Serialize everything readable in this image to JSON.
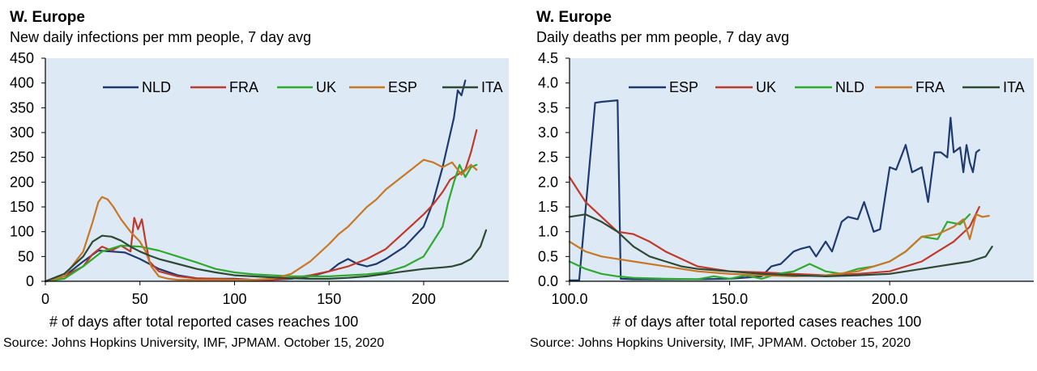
{
  "chart_data": [
    {
      "type": "line",
      "title": "W. Europe",
      "subtitle": "New daily infections per mm people, 7 day avg",
      "xlabel": "# of days after total reported cases reaches 100",
      "ylabel": "",
      "source": "Source: Johns Hopkins University, IMF, JPMAM. October 15, 2020",
      "xlim": [
        0,
        245
      ],
      "ylim": [
        0,
        450
      ],
      "xticks": [
        0,
        50,
        100,
        150,
        200
      ],
      "yticks": [
        0,
        50,
        100,
        150,
        200,
        250,
        300,
        350,
        400,
        450
      ],
      "tick_format": "int",
      "grid": false,
      "background": "#dde9f5",
      "legend_position": "top",
      "series": [
        {
          "name": "NLD",
          "color": "#1f3a6e",
          "x": [
            0,
            10,
            20,
            28,
            35,
            42,
            50,
            60,
            70,
            80,
            90,
            100,
            110,
            120,
            130,
            140,
            150,
            155,
            160,
            165,
            170,
            175,
            180,
            190,
            200,
            205,
            210,
            213,
            216,
            218,
            220,
            222
          ],
          "y": [
            0,
            10,
            40,
            62,
            60,
            58,
            45,
            25,
            12,
            6,
            5,
            5,
            3,
            3,
            5,
            10,
            20,
            35,
            45,
            35,
            30,
            35,
            45,
            70,
            110,
            160,
            230,
            280,
            330,
            385,
            375,
            405
          ]
        },
        {
          "name": "FRA",
          "color": "#c0392b",
          "x": [
            0,
            10,
            20,
            25,
            30,
            35,
            40,
            45,
            47,
            49,
            51,
            53,
            55,
            60,
            70,
            80,
            90,
            100,
            110,
            120,
            130,
            140,
            150,
            160,
            170,
            180,
            190,
            200,
            205,
            210,
            214,
            218,
            222,
            225,
            228
          ],
          "y": [
            0,
            10,
            30,
            55,
            70,
            62,
            72,
            60,
            128,
            105,
            125,
            80,
            40,
            20,
            10,
            6,
            5,
            4,
            3,
            3,
            6,
            12,
            20,
            30,
            45,
            65,
            100,
            135,
            155,
            180,
            205,
            215,
            225,
            260,
            305
          ]
        },
        {
          "name": "UK",
          "color": "#2eaa2e",
          "x": [
            0,
            10,
            20,
            30,
            40,
            50,
            60,
            70,
            80,
            90,
            100,
            110,
            120,
            130,
            140,
            150,
            160,
            170,
            180,
            190,
            200,
            205,
            210,
            213,
            216,
            219,
            222,
            225,
            228
          ],
          "y": [
            0,
            5,
            30,
            60,
            72,
            70,
            62,
            50,
            38,
            25,
            18,
            14,
            12,
            10,
            10,
            10,
            12,
            14,
            18,
            30,
            50,
            80,
            110,
            160,
            200,
            235,
            210,
            230,
            235
          ]
        },
        {
          "name": "ESP",
          "color": "#c87825",
          "x": [
            0,
            10,
            20,
            25,
            28,
            30,
            33,
            36,
            40,
            45,
            50,
            53,
            56,
            60,
            65,
            70,
            80,
            90,
            100,
            110,
            120,
            130,
            140,
            150,
            155,
            160,
            165,
            170,
            175,
            180,
            185,
            190,
            195,
            200,
            205,
            210,
            215,
            220,
            225,
            228
          ],
          "y": [
            0,
            10,
            60,
            120,
            160,
            170,
            165,
            150,
            125,
            100,
            80,
            60,
            30,
            10,
            5,
            3,
            3,
            3,
            3,
            3,
            5,
            15,
            40,
            75,
            95,
            110,
            130,
            150,
            165,
            185,
            200,
            215,
            230,
            245,
            240,
            230,
            240,
            215,
            235,
            225
          ]
        },
        {
          "name": "ITA",
          "color": "#2e4a34",
          "x": [
            0,
            10,
            20,
            25,
            30,
            35,
            40,
            45,
            50,
            55,
            60,
            70,
            80,
            90,
            100,
            110,
            120,
            130,
            140,
            150,
            160,
            170,
            180,
            190,
            200,
            210,
            215,
            220,
            225,
            230,
            233
          ],
          "y": [
            0,
            15,
            50,
            80,
            92,
            90,
            82,
            70,
            60,
            52,
            45,
            35,
            25,
            18,
            12,
            10,
            8,
            6,
            5,
            5,
            7,
            10,
            15,
            20,
            25,
            28,
            30,
            35,
            45,
            70,
            103
          ]
        }
      ]
    },
    {
      "type": "line",
      "title": "W. Europe",
      "subtitle": "Daily deaths per mm people, 7 day avg",
      "xlabel": "# of days after total reported cases reaches 100",
      "ylabel": "",
      "source": "Source: Johns Hopkins University, IMF, JPMAM. October 15, 2020",
      "xlim": [
        100,
        245
      ],
      "ylim": [
        0,
        4.5
      ],
      "xticks": [
        100,
        150,
        200
      ],
      "yticks": [
        0,
        0.5,
        1.0,
        1.5,
        2.0,
        2.5,
        3.0,
        3.5,
        4.0,
        4.5
      ],
      "tick_format": "1dp",
      "grid": false,
      "background": "#dde9f5",
      "legend_position": "top",
      "series": [
        {
          "name": "ESP",
          "color": "#1f3a6e",
          "x": [
            100,
            103,
            108,
            110,
            115,
            116,
            120,
            125,
            130,
            140,
            150,
            160,
            163,
            166,
            170,
            172,
            175,
            177,
            180,
            182,
            185,
            187,
            190,
            192,
            195,
            197,
            200,
            202,
            205,
            207,
            210,
            212,
            214,
            216,
            218,
            219,
            220,
            222,
            223,
            224,
            225,
            226,
            227,
            228
          ],
          "y": [
            0.02,
            0.02,
            3.6,
            3.62,
            3.65,
            0.05,
            0.04,
            0.04,
            0.04,
            0.04,
            0.05,
            0.1,
            0.3,
            0.35,
            0.6,
            0.65,
            0.7,
            0.5,
            0.8,
            0.6,
            1.2,
            1.3,
            1.25,
            1.6,
            1.0,
            1.05,
            2.3,
            2.25,
            2.75,
            2.2,
            2.3,
            1.6,
            2.6,
            2.6,
            2.5,
            3.3,
            2.6,
            2.7,
            2.2,
            2.75,
            2.4,
            2.2,
            2.6,
            2.65
          ]
        },
        {
          "name": "UK",
          "color": "#c0392b",
          "x": [
            100,
            102,
            105,
            110,
            115,
            120,
            125,
            130,
            140,
            150,
            160,
            170,
            180,
            190,
            200,
            210,
            215,
            220,
            225,
            228
          ],
          "y": [
            2.1,
            1.9,
            1.6,
            1.3,
            1.0,
            0.95,
            0.8,
            0.6,
            0.3,
            0.2,
            0.18,
            0.15,
            0.12,
            0.15,
            0.2,
            0.4,
            0.6,
            0.8,
            1.1,
            1.5
          ]
        },
        {
          "name": "NLD",
          "color": "#2eaa2e",
          "x": [
            100,
            105,
            110,
            115,
            120,
            130,
            140,
            145,
            150,
            155,
            160,
            165,
            170,
            175,
            180,
            185,
            190,
            195,
            200,
            205,
            210,
            215,
            218,
            222,
            225
          ],
          "y": [
            0.4,
            0.25,
            0.15,
            0.1,
            0.07,
            0.05,
            0.04,
            0.1,
            0.05,
            0.12,
            0.05,
            0.15,
            0.2,
            0.35,
            0.2,
            0.15,
            0.25,
            0.3,
            0.4,
            0.6,
            0.9,
            0.85,
            1.2,
            1.15,
            1.35
          ]
        },
        {
          "name": "FRA",
          "color": "#c87825",
          "x": [
            100,
            105,
            110,
            115,
            120,
            130,
            140,
            150,
            160,
            170,
            180,
            190,
            200,
            205,
            210,
            215,
            220,
            223,
            225,
            227,
            229,
            231
          ],
          "y": [
            0.8,
            0.6,
            0.5,
            0.45,
            0.4,
            0.3,
            0.2,
            0.15,
            0.12,
            0.1,
            0.12,
            0.2,
            0.4,
            0.6,
            0.9,
            0.95,
            1.1,
            1.25,
            0.85,
            1.35,
            1.3,
            1.32
          ]
        },
        {
          "name": "ITA",
          "color": "#2e4a34",
          "x": [
            100,
            105,
            110,
            115,
            120,
            125,
            130,
            135,
            140,
            150,
            160,
            170,
            180,
            190,
            200,
            210,
            215,
            220,
            225,
            230,
            232
          ],
          "y": [
            1.3,
            1.35,
            1.2,
            1.0,
            0.7,
            0.5,
            0.4,
            0.3,
            0.25,
            0.2,
            0.15,
            0.12,
            0.1,
            0.12,
            0.15,
            0.25,
            0.3,
            0.35,
            0.4,
            0.5,
            0.7
          ]
        }
      ]
    }
  ]
}
